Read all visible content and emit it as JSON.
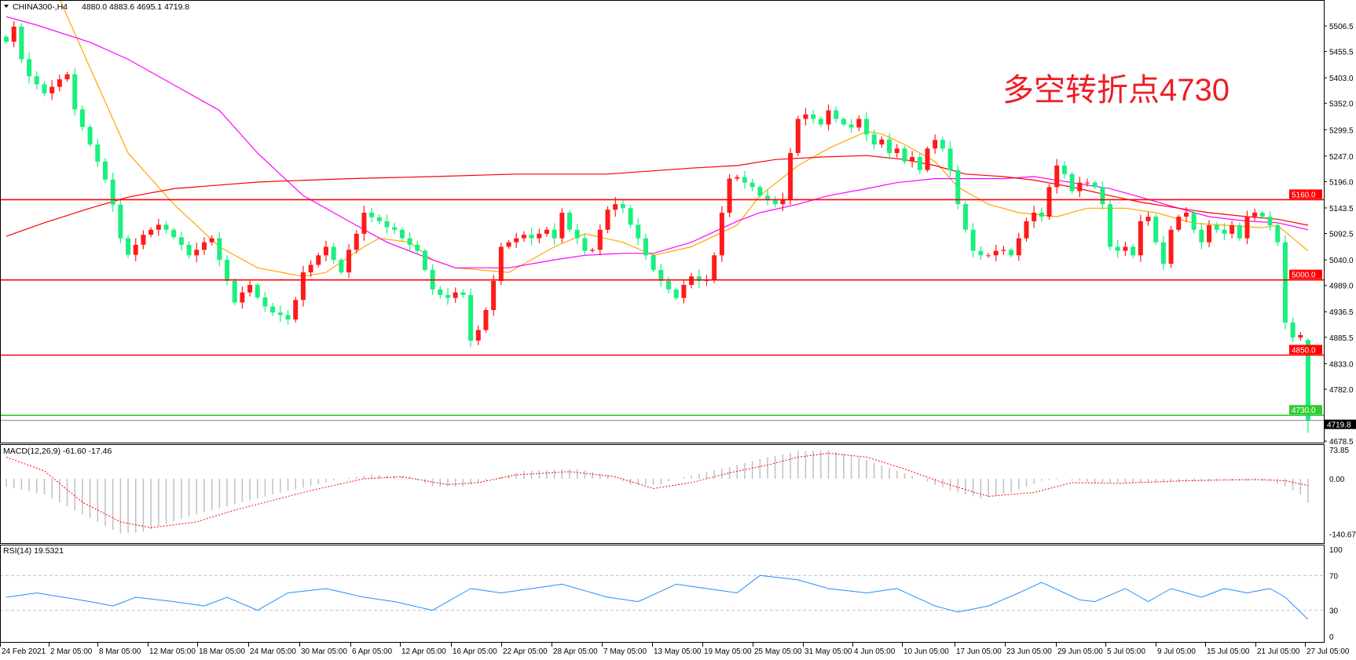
{
  "header": {
    "symbol": "CHINA300-,H4",
    "ohlc": "4880.0 4883.6 4695.1 4719.8",
    "annotation": "多空转折点4730"
  },
  "colors": {
    "up": "#ff1a1a",
    "down": "#19f07f",
    "ma_fast": "#ffa500",
    "ma_mid": "#ff00ff",
    "ma_slow": "#ff0000",
    "level_red": "#ff0000",
    "level_green": "#33cc33",
    "macd_hist": "#c0c0c0",
    "macd_signal": "#ff0000",
    "rsi": "#1e90ff"
  },
  "chart_data": [
    {
      "type": "candlestick",
      "title": "CHINA300-,H4",
      "last_bar": {
        "open": 4880.0,
        "high": 4883.6,
        "low": 4695.1,
        "close": 4719.8
      },
      "y_ticks": [
        "5506.5",
        "5455.5",
        "5403.0",
        "5352.0",
        "5299.5",
        "5247.0",
        "5196.0",
        "5143.5",
        "5092.5",
        "5040.0",
        "4989.0",
        "4936.5",
        "4885.5",
        "4833.0",
        "4782.0",
        "4678.5"
      ],
      "ylim": [
        4678.5,
        5560
      ],
      "x_ticks": [
        "24 Feb 2021",
        "2 Mar 05:00",
        "8 Mar 05:00",
        "12 Mar 05:00",
        "18 Mar 05:00",
        "24 Mar 05:00",
        "30 Mar 05:00",
        "6 Apr 05:00",
        "12 Apr 05:00",
        "16 Apr 05:00",
        "22 Apr 05:00",
        "28 Apr 05:00",
        "7 May 05:00",
        "13 May 05:00",
        "19 May 05:00",
        "25 May 05:00",
        "31 May 05:00",
        "4 Jun 05:00",
        "10 Jun 05:00",
        "17 Jun 05:00",
        "23 Jun 05:00",
        "29 Jun 05:00",
        "5 Jul 05:00",
        "9 Jul 05:00",
        "15 Jul 05:00",
        "21 Jul 05:00",
        "27 Jul 05:00"
      ],
      "closes": [
        5475,
        5505,
        5440,
        5406,
        5390,
        5372,
        5385,
        5400,
        5410,
        5340,
        5305,
        5270,
        5236,
        5200,
        5150,
        5083,
        5050,
        5070,
        5090,
        5100,
        5110,
        5100,
        5085,
        5070,
        5049,
        5060,
        5075,
        5083,
        5040,
        4998,
        4955,
        4975,
        4990,
        4965,
        4947,
        4935,
        4930,
        4921,
        4960,
        5015,
        5030,
        5049,
        5066,
        5040,
        5015,
        5060,
        5092,
        5134,
        5125,
        5117,
        5105,
        5100,
        5083,
        5070,
        5058,
        5020,
        4981,
        4970,
        4964,
        4975,
        4970,
        4879,
        4900,
        4940,
        4998,
        5066,
        5075,
        5083,
        5090,
        5083,
        5092,
        5100,
        5083,
        5134,
        5100,
        5083,
        5058,
        5060,
        5100,
        5140,
        5151,
        5143,
        5110,
        5083,
        5049,
        5020,
        4998,
        4981,
        4964,
        4990,
        5007,
        4998,
        5000,
        5049,
        5134,
        5202,
        5205,
        5194,
        5185,
        5168,
        5160,
        5151,
        5160,
        5253,
        5321,
        5330,
        5321,
        5310,
        5338,
        5321,
        5310,
        5304,
        5321,
        5290,
        5270,
        5280,
        5253,
        5262,
        5236,
        5245,
        5219,
        5262,
        5279,
        5262,
        5219,
        5151,
        5100,
        5058,
        5049,
        5049,
        5058,
        5060,
        5049,
        5083,
        5117,
        5134,
        5126,
        5185,
        5228,
        5211,
        5177,
        5194,
        5194,
        5185,
        5151,
        5066,
        5058,
        5066,
        5049,
        5117,
        5126,
        5075,
        5032,
        5100,
        5126,
        5134,
        5100,
        5075,
        5109,
        5100,
        5092,
        5109,
        5083,
        5126,
        5134,
        5126,
        5109,
        5075,
        4915,
        4885,
        4890,
        4719.8
      ],
      "moving_averages": [
        {
          "color_key": "ma_fast",
          "points": [
            [
              7,
              5560
            ],
            [
              11,
              5423
            ],
            [
              16,
              5253
            ],
            [
              22,
              5151
            ],
            [
              28,
              5066
            ],
            [
              33,
              5024
            ],
            [
              39,
              5007
            ],
            [
              42,
              5015
            ],
            [
              47,
              5066
            ],
            [
              49,
              5083
            ],
            [
              53,
              5075
            ],
            [
              56,
              5040
            ],
            [
              59,
              5024
            ],
            [
              66,
              5015
            ],
            [
              72,
              5066
            ],
            [
              76,
              5092
            ],
            [
              81,
              5075
            ],
            [
              85,
              5049
            ],
            [
              90,
              5066
            ],
            [
              96,
              5109
            ],
            [
              99,
              5168
            ],
            [
              104,
              5228
            ],
            [
              108,
              5262
            ],
            [
              113,
              5296
            ],
            [
              115,
              5291
            ],
            [
              118,
              5270
            ],
            [
              122,
              5236
            ],
            [
              125,
              5185
            ],
            [
              129,
              5151
            ],
            [
              133,
              5134
            ],
            [
              138,
              5126
            ],
            [
              142,
              5143
            ],
            [
              147,
              5143
            ],
            [
              151,
              5134
            ],
            [
              156,
              5113
            ],
            [
              160,
              5109
            ],
            [
              165,
              5104
            ],
            [
              167,
              5109
            ],
            [
              169,
              5083
            ],
            [
              171,
              5058
            ]
          ]
        },
        {
          "color_key": "ma_mid",
          "points": [
            [
              0,
              5525
            ],
            [
              4,
              5508
            ],
            [
              11,
              5474
            ],
            [
              16,
              5440
            ],
            [
              22,
              5389
            ],
            [
              28,
              5338
            ],
            [
              33,
              5253
            ],
            [
              39,
              5168
            ],
            [
              45,
              5117
            ],
            [
              50,
              5075
            ],
            [
              56,
              5040
            ],
            [
              59,
              5024
            ],
            [
              66,
              5024
            ],
            [
              72,
              5040
            ],
            [
              76,
              5049
            ],
            [
              81,
              5053
            ],
            [
              85,
              5053
            ],
            [
              90,
              5075
            ],
            [
              96,
              5117
            ],
            [
              99,
              5134
            ],
            [
              104,
              5151
            ],
            [
              108,
              5168
            ],
            [
              113,
              5182
            ],
            [
              117,
              5194
            ],
            [
              122,
              5202
            ],
            [
              126,
              5202
            ],
            [
              131,
              5202
            ],
            [
              135,
              5206
            ],
            [
              140,
              5194
            ],
            [
              145,
              5182
            ],
            [
              149,
              5165
            ],
            [
              154,
              5143
            ],
            [
              158,
              5126
            ],
            [
              163,
              5117
            ],
            [
              167,
              5114
            ],
            [
              171,
              5100
            ]
          ]
        },
        {
          "color_key": "ma_slow",
          "points": [
            [
              0,
              5087
            ],
            [
              5,
              5114
            ],
            [
              11,
              5143
            ],
            [
              16,
              5165
            ],
            [
              22,
              5182
            ],
            [
              33,
              5195
            ],
            [
              45,
              5202
            ],
            [
              56,
              5206
            ],
            [
              67,
              5211
            ],
            [
              79,
              5211
            ],
            [
              90,
              5223
            ],
            [
              96,
              5228
            ],
            [
              101,
              5240
            ],
            [
              107,
              5245
            ],
            [
              113,
              5248
            ],
            [
              118,
              5240
            ],
            [
              122,
              5228
            ],
            [
              126,
              5211
            ],
            [
              131,
              5206
            ],
            [
              135,
              5199
            ],
            [
              140,
              5185
            ],
            [
              145,
              5168
            ],
            [
              149,
              5155
            ],
            [
              154,
              5143
            ],
            [
              158,
              5134
            ],
            [
              163,
              5126
            ],
            [
              167,
              5121
            ],
            [
              171,
              5109
            ]
          ]
        }
      ],
      "levels": [
        {
          "value": "5160.0",
          "color_key": "level_red"
        },
        {
          "value": "5000.0",
          "color_key": "level_red"
        },
        {
          "value": "4850.0",
          "color_key": "level_red"
        },
        {
          "value": "4730.0",
          "color_key": "level_green"
        }
      ],
      "current_price": "4719.8"
    },
    {
      "type": "bar",
      "title": "MACD(12,26,9) -61.60 -17.46",
      "ylim": [
        -140.67,
        73.85
      ],
      "y_ticks": [
        "73.85",
        "0.00",
        "-140.67"
      ],
      "histogram_points": [
        [
          0,
          -20
        ],
        [
          5,
          -40
        ],
        [
          10,
          -90
        ],
        [
          15,
          -140
        ],
        [
          18,
          -135
        ],
        [
          25,
          -90
        ],
        [
          35,
          -40
        ],
        [
          44,
          0
        ],
        [
          48,
          10
        ],
        [
          53,
          5
        ],
        [
          56,
          -20
        ],
        [
          60,
          -20
        ],
        [
          64,
          0
        ],
        [
          68,
          20
        ],
        [
          75,
          25
        ],
        [
          79,
          10
        ],
        [
          82,
          -15
        ],
        [
          86,
          -15
        ],
        [
          88,
          0
        ],
        [
          95,
          30
        ],
        [
          100,
          55
        ],
        [
          104,
          70
        ],
        [
          108,
          72
        ],
        [
          112,
          55
        ],
        [
          117,
          20
        ],
        [
          120,
          0
        ],
        [
          124,
          -30
        ],
        [
          128,
          -50
        ],
        [
          132,
          -35
        ],
        [
          136,
          -5
        ],
        [
          139,
          0
        ],
        [
          143,
          -10
        ],
        [
          150,
          -10
        ],
        [
          160,
          -5
        ],
        [
          166,
          -5
        ],
        [
          168,
          -20
        ],
        [
          170,
          -40
        ],
        [
          171,
          -61.6
        ]
      ],
      "signal_points": [
        [
          0,
          55
        ],
        [
          5,
          20
        ],
        [
          10,
          -60
        ],
        [
          15,
          -110
        ],
        [
          19,
          -125
        ],
        [
          25,
          -110
        ],
        [
          30,
          -80
        ],
        [
          40,
          -30
        ],
        [
          47,
          0
        ],
        [
          52,
          5
        ],
        [
          58,
          -15
        ],
        [
          62,
          -10
        ],
        [
          67,
          10
        ],
        [
          74,
          18
        ],
        [
          80,
          5
        ],
        [
          85,
          -25
        ],
        [
          90,
          -10
        ],
        [
          95,
          15
        ],
        [
          100,
          35
        ],
        [
          104,
          55
        ],
        [
          108,
          65
        ],
        [
          113,
          55
        ],
        [
          118,
          25
        ],
        [
          123,
          -10
        ],
        [
          129,
          -45
        ],
        [
          135,
          -35
        ],
        [
          140,
          -10
        ],
        [
          146,
          -12
        ],
        [
          155,
          -5
        ],
        [
          164,
          -2
        ],
        [
          168,
          -5
        ],
        [
          171,
          -17.46
        ]
      ]
    },
    {
      "type": "line",
      "title": "RSI(14) 19.5321",
      "ylim": [
        0,
        100
      ],
      "y_ticks": [
        "100",
        "70",
        "30",
        "0"
      ],
      "levels": [
        70,
        30
      ],
      "points": [
        [
          0,
          45
        ],
        [
          4,
          50
        ],
        [
          11,
          40
        ],
        [
          14,
          35
        ],
        [
          17,
          45
        ],
        [
          22,
          40
        ],
        [
          26,
          35
        ],
        [
          29,
          45
        ],
        [
          33,
          30
        ],
        [
          37,
          50
        ],
        [
          42,
          55
        ],
        [
          47,
          45
        ],
        [
          51,
          40
        ],
        [
          56,
          30
        ],
        [
          61,
          55
        ],
        [
          65,
          50
        ],
        [
          73,
          60
        ],
        [
          79,
          45
        ],
        [
          83,
          40
        ],
        [
          88,
          60
        ],
        [
          92,
          55
        ],
        [
          96,
          50
        ],
        [
          99,
          70
        ],
        [
          104,
          65
        ],
        [
          108,
          55
        ],
        [
          113,
          50
        ],
        [
          117,
          55
        ],
        [
          122,
          35
        ],
        [
          125,
          28
        ],
        [
          129,
          35
        ],
        [
          133,
          50
        ],
        [
          136,
          62
        ],
        [
          141,
          42
        ],
        [
          143,
          40
        ],
        [
          147,
          55
        ],
        [
          150,
          40
        ],
        [
          153,
          55
        ],
        [
          157,
          45
        ],
        [
          160,
          55
        ],
        [
          163,
          50
        ],
        [
          166,
          55
        ],
        [
          168,
          45
        ],
        [
          170,
          28
        ],
        [
          171,
          19.53
        ]
      ]
    }
  ]
}
